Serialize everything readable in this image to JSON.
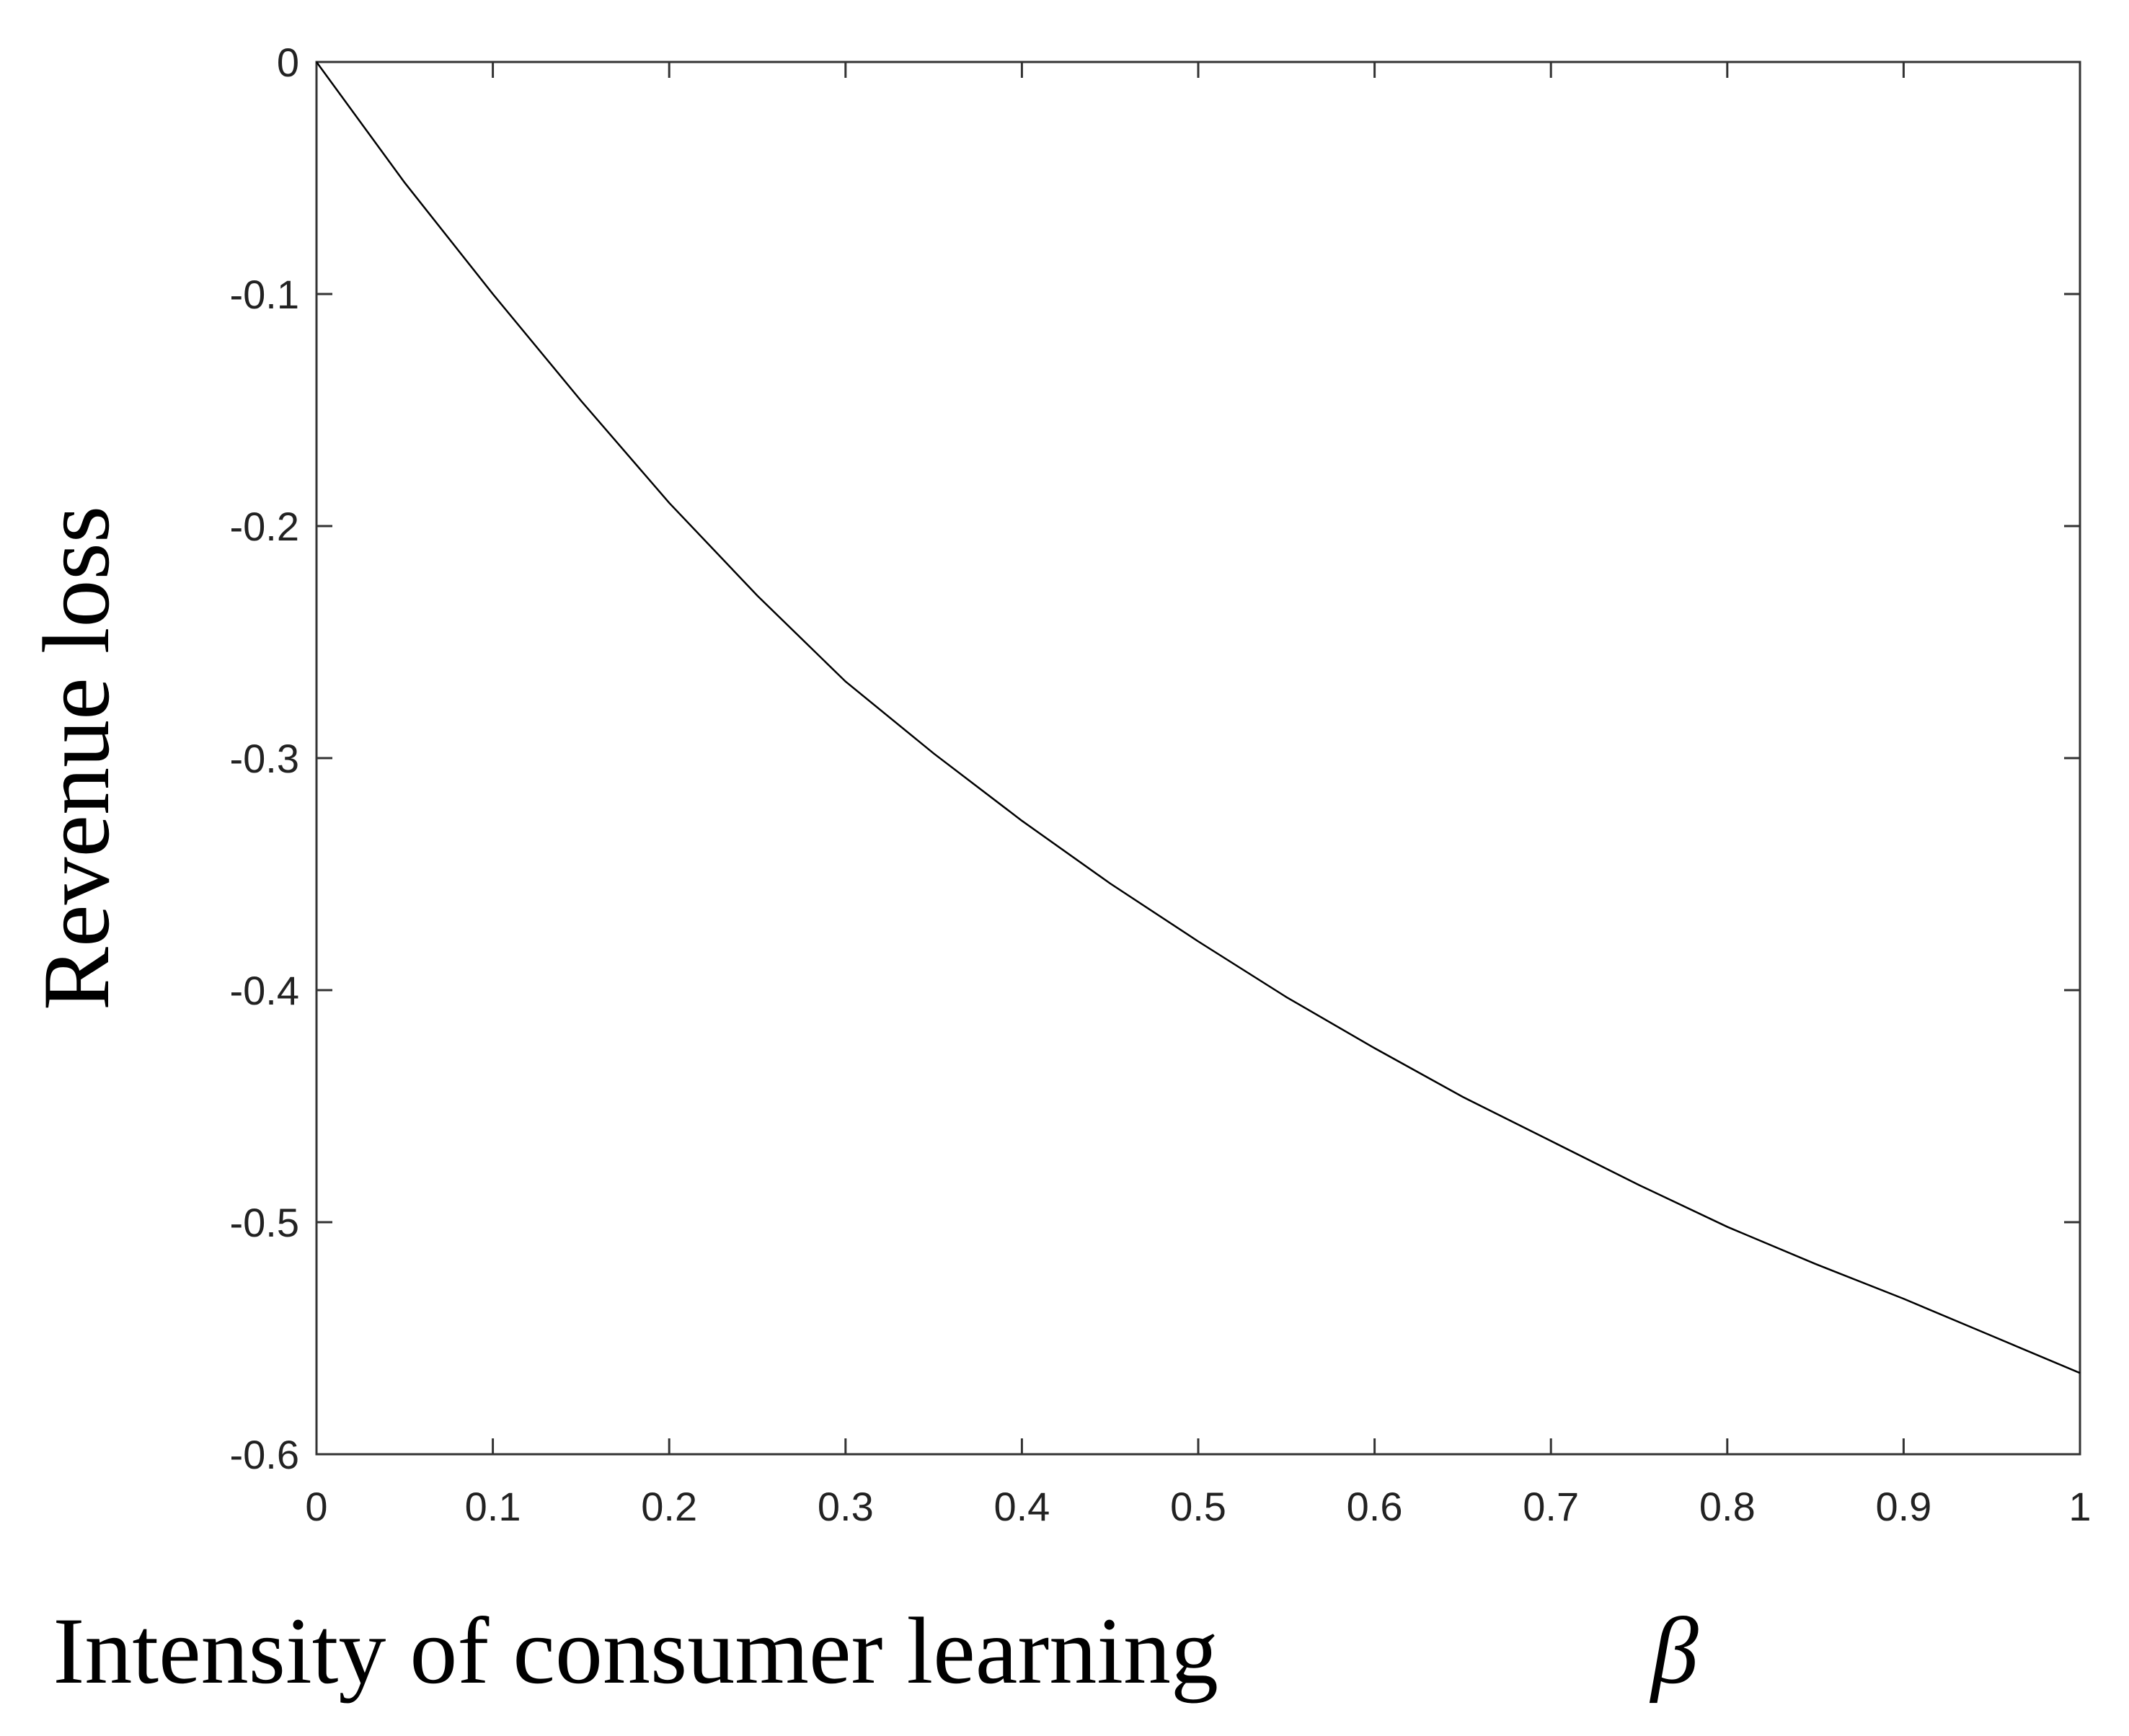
{
  "chart_data": {
    "type": "line",
    "x_label": "Intensity of consumer learning",
    "x_label_symbol": "β",
    "y_label": "Revenue loss",
    "x": [
      0,
      0.05,
      0.1,
      0.15,
      0.2,
      0.25,
      0.3,
      0.35,
      0.4,
      0.45,
      0.5,
      0.55,
      0.6,
      0.65,
      0.7,
      0.75,
      0.8,
      0.85,
      0.9,
      0.95,
      1
    ],
    "series": [
      {
        "color": "#000000",
        "values": [
          0,
          -0.052,
          -0.1,
          -0.146,
          -0.19,
          -0.23,
          -0.267,
          -0.298,
          -0.327,
          -0.354,
          -0.379,
          -0.403,
          -0.425,
          -0.446,
          -0.465,
          -0.484,
          -0.502,
          -0.518,
          -0.533,
          -0.549,
          -0.565
        ]
      }
    ],
    "xlim": [
      0,
      1
    ],
    "ylim": [
      -0.6,
      0
    ],
    "xticks": [
      0,
      0.1,
      0.2,
      0.3,
      0.4,
      0.5,
      0.6,
      0.7,
      0.8,
      0.9,
      1
    ],
    "yticks": [
      -0.6,
      -0.5,
      -0.4,
      -0.3,
      -0.2,
      -0.1,
      0
    ],
    "grid": false
  }
}
